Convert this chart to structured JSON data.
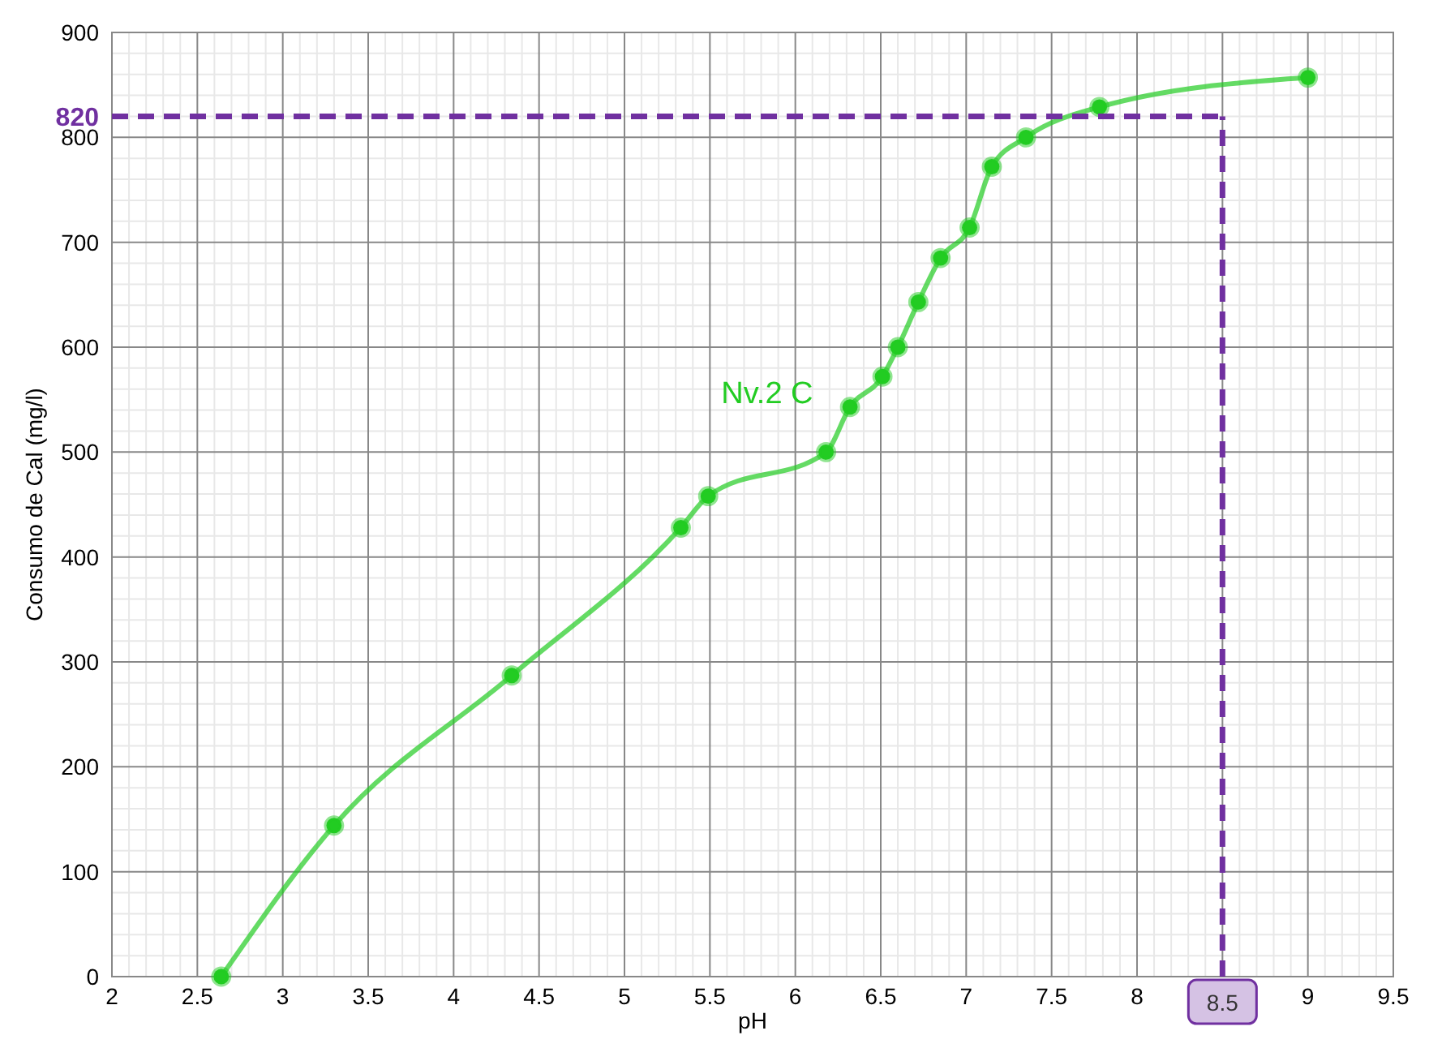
{
  "chart_data": {
    "type": "line",
    "xlabel": "pH",
    "ylabel": "Consumo de Cal (mg/l)",
    "xlim": [
      2,
      9.5
    ],
    "xticks": [
      2,
      2.5,
      3,
      3.5,
      4,
      4.5,
      5,
      5.5,
      6,
      6.5,
      7,
      7.5,
      8,
      8.5,
      9,
      9.5
    ],
    "ylim": [
      0,
      900
    ],
    "yticks": [
      0,
      100,
      200,
      300,
      400,
      500,
      600,
      700,
      800,
      900
    ],
    "grid": true,
    "marker": "circle",
    "line_style": "solid",
    "series": [
      {
        "name": "Nv.2 C",
        "color": "#22cc22",
        "x": [
          2.64,
          3.3,
          4.34,
          5.33,
          5.49,
          6.18,
          6.32,
          6.51,
          6.6,
          6.72,
          6.85,
          7.02,
          7.15,
          7.35,
          7.78,
          9.0
        ],
        "values": [
          0,
          144,
          287,
          428,
          458,
          500,
          543,
          572,
          600,
          643,
          685,
          714,
          772,
          800,
          829,
          857
        ]
      }
    ],
    "ref_lines": [
      {
        "axis": "y",
        "value": 820,
        "label": "820",
        "color": "#7030a0",
        "line_style": "dashed"
      },
      {
        "axis": "x",
        "value": 8.5,
        "label": "8.5",
        "color": "#7030a0",
        "line_style": "dashed"
      }
    ]
  }
}
